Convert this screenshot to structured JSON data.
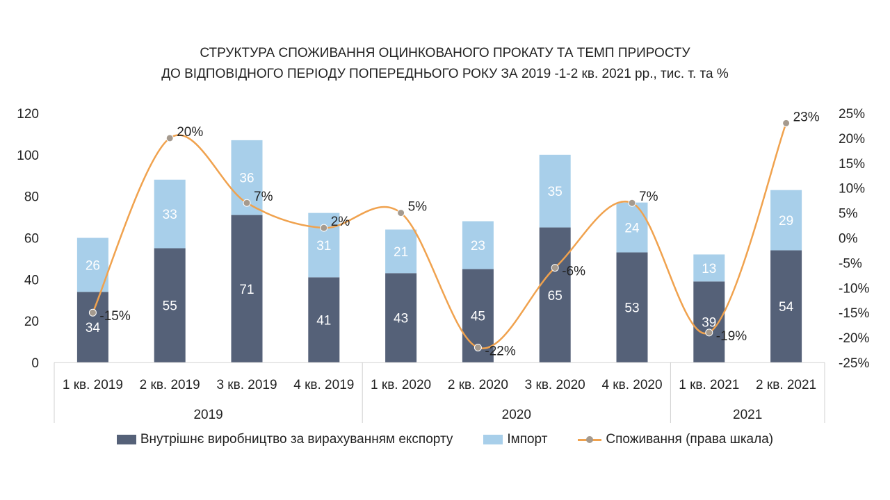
{
  "title_lines": [
    "СТРУКТУРА СПОЖИВАННЯ ОЦИНКОВАНОГО ПРОКАТУ ТА ТЕМП ПРИРОСТУ",
    "ДО ВІДПОВІДНОГО ПЕРІОДУ ПОПЕРЕДНЬОГО РОКУ ЗА 2019 -1-2 кв. 2021 рр., тис. т. та %"
  ],
  "colors": {
    "domestic": "#556178",
    "import": "#a8cfea",
    "line": "#f0a24e",
    "marker": "#a59a8e"
  },
  "legend": {
    "domestic": "Внутрішнє виробництво за вирахуванням експорту",
    "import": "Імпорт",
    "consumption": "Споживання (права шкала)"
  },
  "chart_data": {
    "type": "bar",
    "stacked": true,
    "title": "СТРУКТУРА СПОЖИВАННЯ ОЦИНКОВАНОГО ПРОКАТУ ТА ТЕМП ПРИРОСТУ ДО ВІДПОВІДНОГО ПЕРІОДУ ПОПЕРЕДНЬОГО РОКУ ЗА 2019 -1-2 кв. 2021 рр., тис. т. та %",
    "categories": [
      "1 кв. 2019",
      "2 кв. 2019",
      "3 кв. 2019",
      "4 кв. 2019",
      "1 кв. 2020",
      "2 кв. 2020",
      "3 кв. 2020",
      "4 кв. 2020",
      "1 кв. 2021",
      "2 кв. 2021"
    ],
    "groups": [
      {
        "label": "2019",
        "count": 4
      },
      {
        "label": "2020",
        "count": 4
      },
      {
        "label": "2021",
        "count": 2
      }
    ],
    "series": [
      {
        "name": "Внутрішнє виробництво за вирахуванням експорту",
        "type": "bar",
        "axis": "left",
        "values": [
          34,
          55,
          71,
          41,
          43,
          45,
          65,
          53,
          39,
          54
        ]
      },
      {
        "name": "Імпорт",
        "type": "bar",
        "axis": "left",
        "values": [
          26,
          33,
          36,
          31,
          21,
          23,
          35,
          24,
          13,
          29
        ]
      },
      {
        "name": "Споживання (права шкала)",
        "type": "line",
        "axis": "right",
        "smooth": true,
        "values": [
          -15,
          20,
          7,
          2,
          5,
          -22,
          -6,
          7,
          -19,
          23
        ],
        "labels": [
          "-15%",
          "20%",
          "7%",
          "2%",
          "5%",
          "-22%",
          "-6%",
          "7%",
          "-19%",
          "23%"
        ]
      }
    ],
    "yleft": {
      "min": 0,
      "max": 120,
      "ticks": [
        "0",
        "20",
        "40",
        "60",
        "80",
        "100",
        "120"
      ]
    },
    "yright": {
      "min": -25,
      "max": 25,
      "ticks": [
        "-25%",
        "-20%",
        "-15%",
        "-10%",
        "-5%",
        "0%",
        "5%",
        "10%",
        "15%",
        "20%",
        "25%"
      ]
    },
    "grid": false,
    "legend_position": "bottom"
  }
}
